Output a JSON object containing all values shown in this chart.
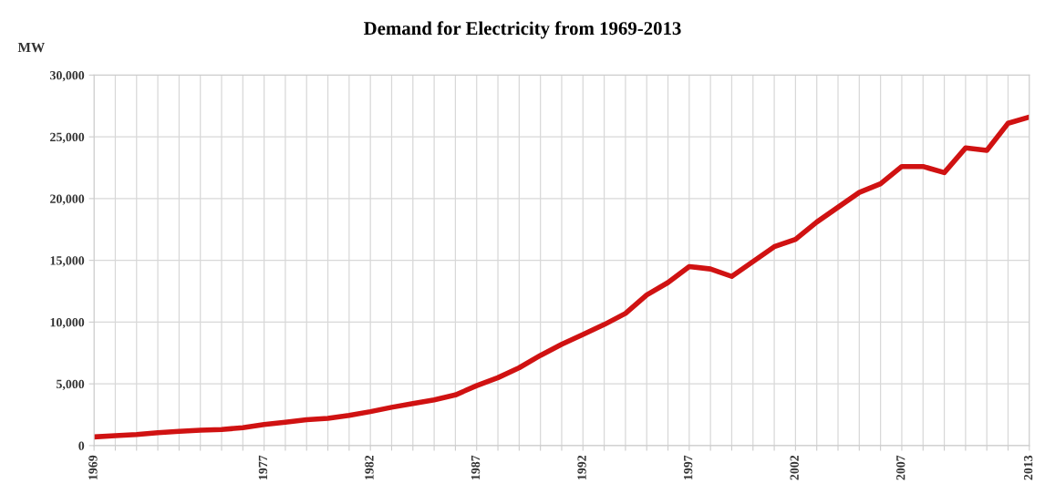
{
  "chart_data": {
    "type": "line",
    "title": "Demand for Electricity from 1969-2013",
    "ylabel": "MW",
    "x": [
      1969,
      1970,
      1971,
      1972,
      1973,
      1974,
      1975,
      1976,
      1977,
      1978,
      1979,
      1980,
      1981,
      1982,
      1983,
      1984,
      1985,
      1986,
      1987,
      1988,
      1989,
      1990,
      1991,
      1992,
      1993,
      1994,
      1995,
      1996,
      1997,
      1998,
      1999,
      2000,
      2001,
      2002,
      2003,
      2004,
      2005,
      2006,
      2007,
      2008,
      2009,
      2010,
      2011,
      2012,
      2013
    ],
    "series": [
      {
        "color": "#d01212",
        "values": [
          700,
          800,
          900,
          1050,
          1150,
          1250,
          1300,
          1450,
          1700,
          1900,
          2100,
          2200,
          2450,
          2750,
          3100,
          3400,
          3700,
          4100,
          4850,
          5500,
          6300,
          7300,
          8200,
          9000,
          9800,
          10700,
          12200,
          13200,
          14500,
          14300,
          13700,
          14900,
          16100,
          16700,
          18100,
          19300,
          20500,
          21200,
          22600,
          22600,
          22100,
          24100,
          23900,
          26100,
          26600
        ]
      }
    ],
    "xlim": [
      1969,
      2013
    ],
    "ylim": [
      0,
      30000
    ],
    "xticks": [
      1969,
      {
        "value": 1970,
        "label": null
      },
      {
        "value": 1971,
        "label": null
      },
      {
        "value": 1972,
        "label": null
      },
      {
        "value": 1973,
        "label": null
      },
      {
        "value": 1974,
        "label": null
      },
      {
        "value": 1975,
        "label": null
      },
      {
        "value": 1976,
        "label": null
      },
      1977,
      {
        "value": 1978,
        "label": null
      },
      {
        "value": 1979,
        "label": null
      },
      {
        "value": 1980,
        "label": null
      },
      {
        "value": 1981,
        "label": null
      },
      1982,
      {
        "value": 1983,
        "label": null
      },
      {
        "value": 1984,
        "label": null
      },
      {
        "value": 1985,
        "label": null
      },
      {
        "value": 1986,
        "label": null
      },
      1987,
      {
        "value": 1988,
        "label": null
      },
      {
        "value": 1989,
        "label": null
      },
      {
        "value": 1990,
        "label": null
      },
      {
        "value": 1991,
        "label": null
      },
      1992,
      {
        "value": 1993,
        "label": null
      },
      {
        "value": 1994,
        "label": null
      },
      {
        "value": 1995,
        "label": null
      },
      {
        "value": 1996,
        "label": null
      },
      1997,
      {
        "value": 1998,
        "label": null
      },
      {
        "value": 1999,
        "label": null
      },
      {
        "value": 2000,
        "label": null
      },
      {
        "value": 2001,
        "label": null
      },
      2002,
      {
        "value": 2003,
        "label": null
      },
      {
        "value": 2004,
        "label": null
      },
      {
        "value": 2005,
        "label": null
      },
      {
        "value": 2006,
        "label": null
      },
      2007,
      {
        "value": 2008,
        "label": null
      },
      {
        "value": 2009,
        "label": null
      },
      {
        "value": 2010,
        "label": null
      },
      {
        "value": 2011,
        "label": null
      },
      {
        "value": 2012,
        "label": null
      },
      2013
    ],
    "yticks": [
      0,
      {
        "value": 5000,
        "label": "5,000"
      },
      {
        "value": 10000,
        "label": "10,000"
      },
      {
        "value": 15000,
        "label": "15,000"
      },
      {
        "value": 20000,
        "label": "20,000"
      },
      {
        "value": 25000,
        "label": "25,000"
      },
      {
        "value": 30000,
        "label": "30,000"
      }
    ],
    "grid": true,
    "marker": "none",
    "line_style": "solid"
  }
}
